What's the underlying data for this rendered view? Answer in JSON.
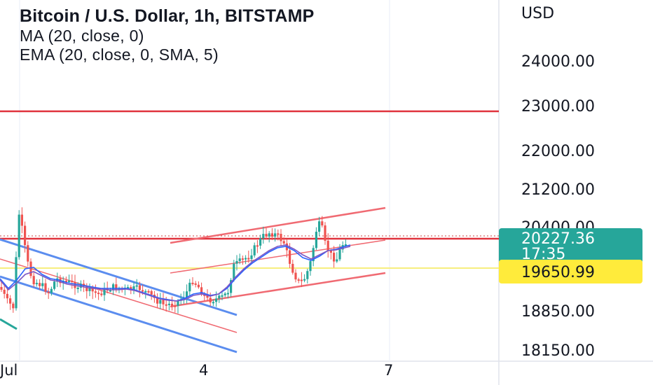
{
  "header": {
    "title": "Bitcoin / U.S. Dollar, 1h, BITSTAMP",
    "indicator_ma": "MA (20, close, 0)",
    "indicator_ema": "EMA (20, close, 0, SMA, 5)"
  },
  "chart_data": {
    "type": "candlestick",
    "symbol": "Bitcoin / U.S. Dollar",
    "interval": "1h",
    "exchange": "BITSTAMP",
    "currency_label": "USD",
    "y_ticks": [
      "24000.00",
      "23000.00",
      "22000.00",
      "21200.00",
      "20400.00",
      "18850.00",
      "18150.00"
    ],
    "x_ticks": [
      "Jul",
      "4",
      "7"
    ],
    "current_price": "20227.36",
    "countdown": "17:35",
    "marked_level": "19650.99",
    "horizontal_resistance": 22850,
    "colors": {
      "up": "#26a69a",
      "down": "#ef5350",
      "ma": "#2962ff",
      "ema": "#7e57c2",
      "channel_red": "#f06a72",
      "channel_blue": "#5b8def",
      "resistance": "#e0323c",
      "yellow_line": "#f7ee7e",
      "price_badge": "#26a69a",
      "level_badge": "#ffeb3b"
    }
  }
}
